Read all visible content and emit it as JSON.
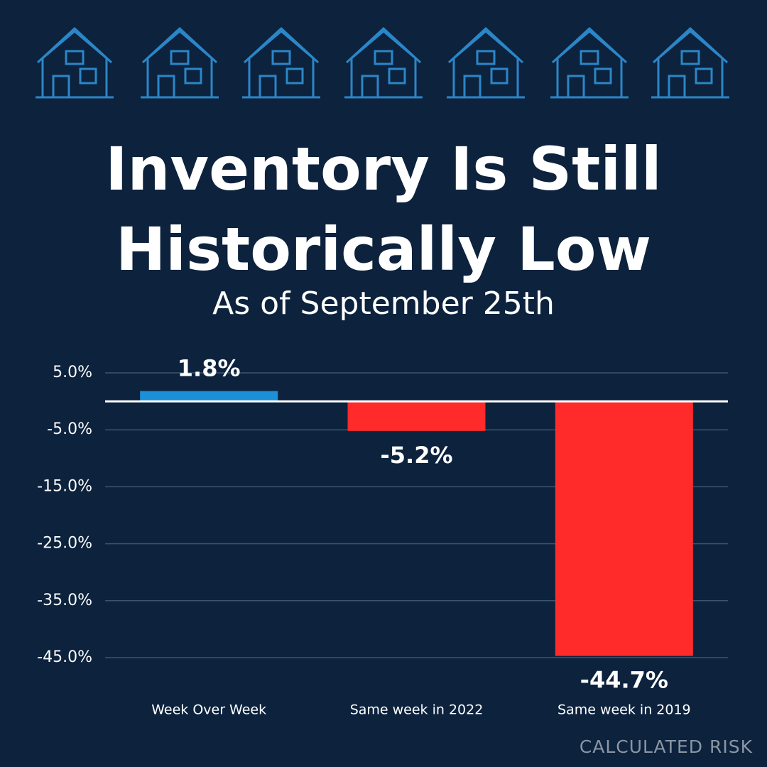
{
  "chart_data": {
    "type": "bar",
    "title": "Inventory Is Still Historically Low",
    "subtitle": "As of September 25th",
    "source": "CALCULATED RISK",
    "categories": [
      "Week Over Week",
      "Same week in 2022",
      "Same week in 2019"
    ],
    "values": [
      1.8,
      -5.2,
      -44.7
    ],
    "value_labels": [
      "1.8%",
      "-5.2%",
      "-44.7%"
    ],
    "colors": [
      "#1b8fd8",
      "#ff2b2b",
      "#ff2b2b"
    ],
    "ylim": [
      -45,
      5
    ],
    "yticks": [
      {
        "value": 5,
        "label": "5.0%"
      },
      {
        "value": -5,
        "label": "-5.0%"
      },
      {
        "value": -15,
        "label": "-15.0%"
      },
      {
        "value": -25,
        "label": "-25.0%"
      },
      {
        "value": -35,
        "label": "-35.0%"
      },
      {
        "value": -45,
        "label": "-45.0%"
      }
    ],
    "grid": true
  }
}
